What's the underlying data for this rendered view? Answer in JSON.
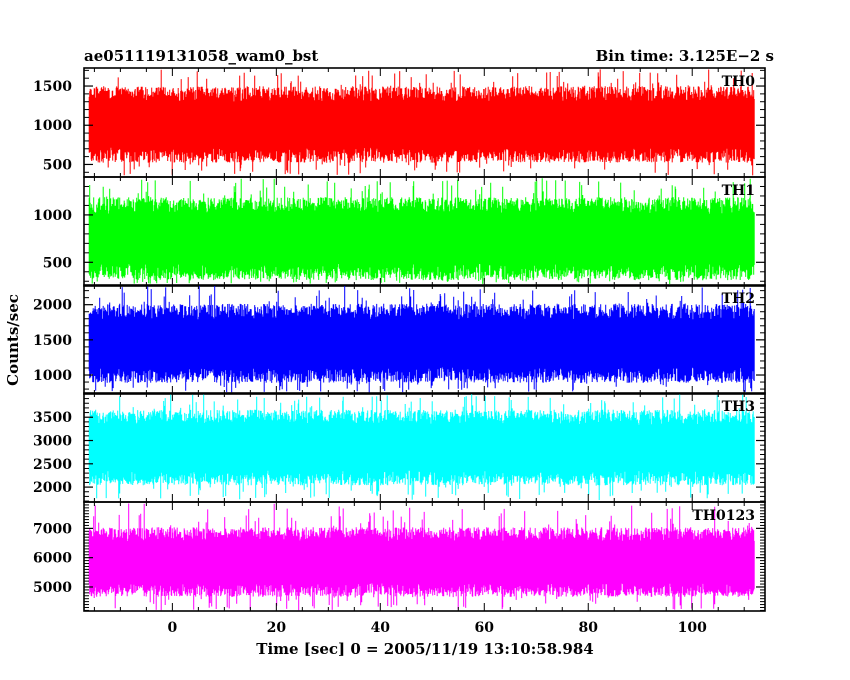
{
  "chart_data": {
    "type": "line",
    "title": "ae051119131058_wam0_bst",
    "bin_time": "Bin time: 3.125E−2 s",
    "xlabel": "Time [sec] 0 = 2005/11/19 13:10:58.984",
    "ylabel": "Counts/sec",
    "xlim": [
      -17,
      114
    ],
    "x_data_range": [
      -16,
      112
    ],
    "x_ticks": [
      0,
      20,
      40,
      60,
      80,
      100
    ],
    "x_tick_labels": [
      "0",
      "20",
      "40",
      "60",
      "80",
      "100"
    ],
    "grid": false,
    "legend": "none",
    "panels": [
      {
        "name": "TH0",
        "color": "#ff0000",
        "ylim": [
          340,
          1730
        ],
        "y_ticks": [
          500,
          1000,
          1500
        ],
        "y_tick_labels": [
          "500",
          "1000",
          "1500"
        ],
        "typical_low": 620,
        "typical_high": 1400,
        "extreme_low": 360,
        "extreme_high": 1720
      },
      {
        "name": "TH1",
        "color": "#00ff00",
        "ylim": [
          250,
          1400
        ],
        "y_ticks": [
          500,
          1000
        ],
        "y_tick_labels": [
          "500",
          "1000"
        ],
        "typical_low": 400,
        "typical_high": 1100,
        "extreme_low": 270,
        "extreme_high": 1390
      },
      {
        "name": "TH2",
        "color": "#0000ff",
        "ylim": [
          730,
          2280
        ],
        "y_ticks": [
          1000,
          1500,
          2000
        ],
        "y_tick_labels": [
          "1000",
          "1500",
          "2000"
        ],
        "typical_low": 1000,
        "typical_high": 1900,
        "extreme_low": 750,
        "extreme_high": 2270
      },
      {
        "name": "TH3",
        "color": "#00ffff",
        "ylim": [
          1680,
          4020
        ],
        "y_ticks": [
          2000,
          2500,
          3000,
          3500
        ],
        "y_tick_labels": [
          "2000",
          "2500",
          "3000",
          "3500"
        ],
        "typical_low": 2200,
        "typical_high": 3500,
        "extreme_low": 1720,
        "extreme_high": 4000
      },
      {
        "name": "TH0123",
        "color": "#ff00ff",
        "ylim": [
          4180,
          7900
        ],
        "y_ticks": [
          5000,
          6000,
          7000
        ],
        "y_tick_labels": [
          "5000",
          "6000",
          "7000"
        ],
        "typical_low": 4900,
        "typical_high": 6800,
        "extreme_low": 4200,
        "extreme_high": 7850
      }
    ]
  }
}
